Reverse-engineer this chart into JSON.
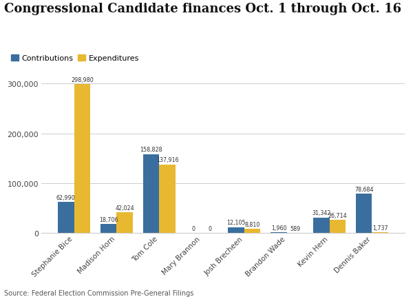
{
  "title": "Congressional Candidate finances Oct. 1 through Oct. 16",
  "legend_labels": [
    "Contributions",
    "Expenditures"
  ],
  "colors": {
    "contributions": "#3a6e9e",
    "expenditures": "#e8b830"
  },
  "candidates": [
    "Stephanie Bice",
    "Madison Horn",
    "Tom Cole",
    "Mary Brannon",
    "Josh Brecheen",
    "Brandon Wade",
    "Kevin Hern",
    "Dennis Baker"
  ],
  "contributions": [
    62990,
    18706,
    158828,
    0,
    12105,
    1960,
    31342,
    78684
  ],
  "expenditures": [
    298980,
    42024,
    137916,
    0,
    8810,
    589,
    26714,
    1737
  ],
  "source": "Source: Federal Election Commission Pre-General Filings",
  "ylim": [
    0,
    325000
  ],
  "yticks": [
    0,
    100000,
    200000,
    300000
  ],
  "ytick_labels": [
    "0",
    "100,000",
    "200,000",
    "300,000"
  ],
  "background_color": "#ffffff",
  "grid_color": "#cccccc"
}
